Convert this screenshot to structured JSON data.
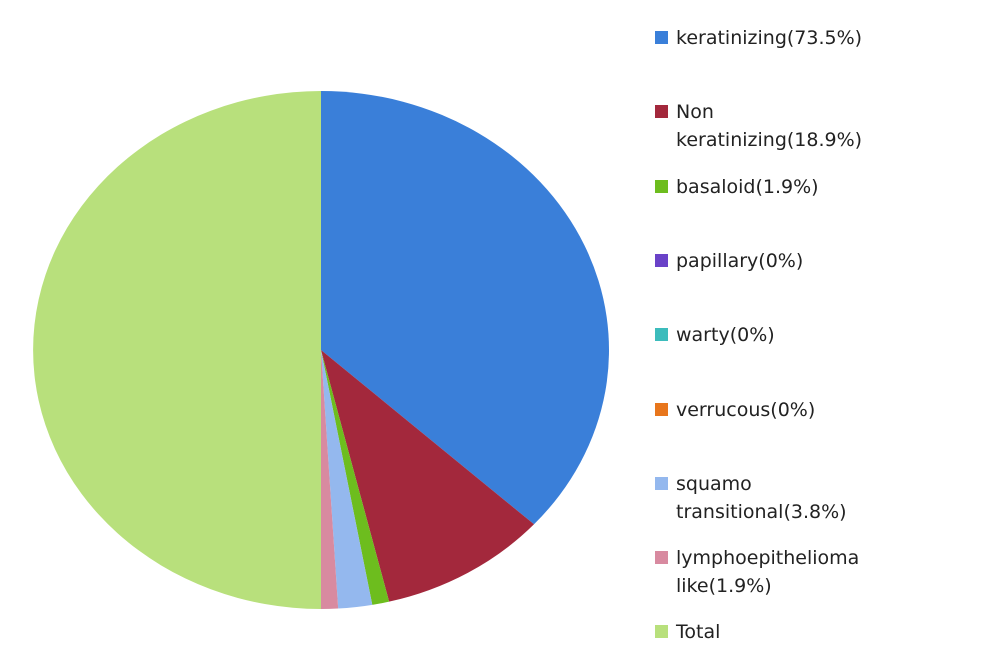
{
  "chart_data": {
    "type": "pie",
    "categories": [
      "keratinizing(73.5%)",
      "Non keratinizing(18.9%)",
      "basaloid(1.9%)",
      "papillary(0%)",
      "warty(0%)",
      "verrucous(0%)",
      "squamo transitional(3.8%)",
      "lymphoepithelioma like(1.9%)",
      "Total"
    ],
    "values": [
      73.5,
      18.9,
      1.9,
      0,
      0,
      0,
      3.8,
      1.9,
      100
    ],
    "colors": [
      "#3a7fd9",
      "#a3283c",
      "#6dbd1e",
      "#6a42c8",
      "#3cbcbc",
      "#e8761c",
      "#94b8ee",
      "#d88aa0",
      "#b8e07c"
    ]
  }
}
